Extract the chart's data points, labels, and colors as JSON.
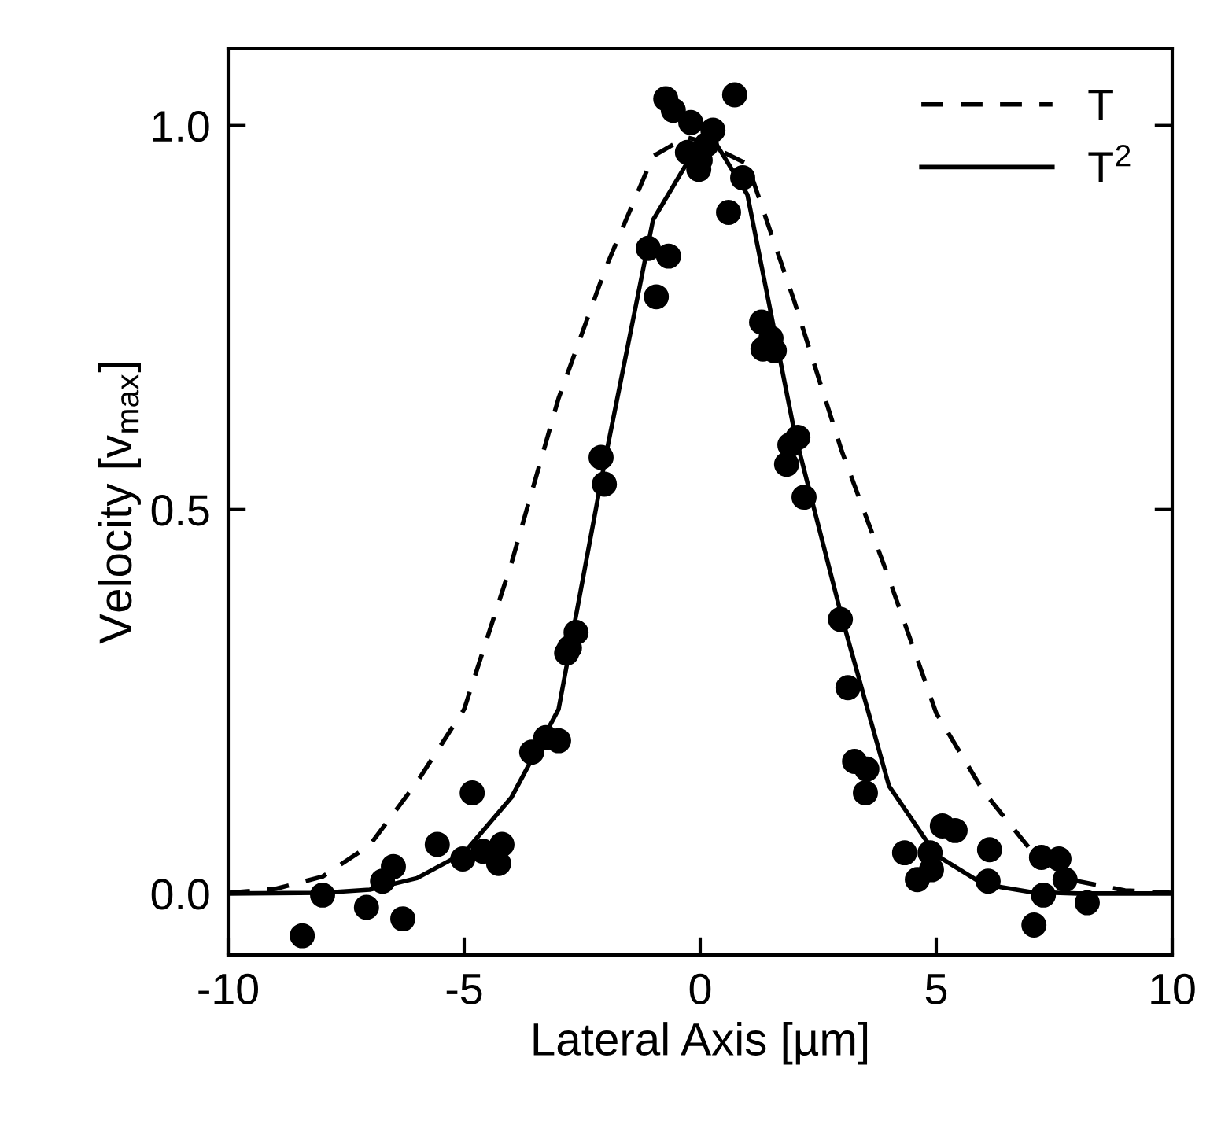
{
  "chart_data": {
    "type": "scatter",
    "xlabel": "Lateral Axis [µm]",
    "ylabel": "Velocity [v$_{max}$]",
    "xlim": [
      -10,
      10
    ],
    "xticks": [
      -10,
      -5,
      0,
      5,
      10
    ],
    "ylim": [
      -0.08,
      1.1
    ],
    "yticks": [
      {
        "value": 0,
        "label": "0.0"
      },
      {
        "value": 0.5,
        "label": "0.5"
      },
      {
        "value": 1,
        "label": "1.0"
      }
    ],
    "grid": false,
    "legend": "top right",
    "series": [
      {
        "type": "line",
        "name": "T",
        "color": "#000000",
        "line_style": "dashed",
        "marker": "none",
        "x": [
          -10,
          -9,
          -8,
          -7,
          -6,
          -5,
          -4,
          -3,
          -2,
          -1,
          -0.3,
          0,
          1,
          2,
          3,
          4,
          5,
          6,
          7,
          8,
          9,
          10
        ],
        "values": [
          0.001,
          0.006,
          0.022,
          0.063,
          0.145,
          0.24,
          0.43,
          0.645,
          0.815,
          0.96,
          0.985,
          0.98,
          0.95,
          0.77,
          0.576,
          0.41,
          0.235,
          0.133,
          0.057,
          0.016,
          0.004,
          0.001
        ]
      },
      {
        "type": "line",
        "name": "T$^{2}$",
        "color": "#000000",
        "line_style": "solid",
        "marker": "none",
        "x": [
          -10,
          -8,
          -7,
          -6,
          -5,
          -4,
          -3,
          -2,
          -1,
          0,
          0.2,
          1,
          2,
          3,
          4,
          5,
          6,
          7,
          8,
          10
        ],
        "values": [
          0,
          0.001,
          0.005,
          0.02,
          0.053,
          0.125,
          0.24,
          0.57,
          0.877,
          0.98,
          0.99,
          0.91,
          0.6,
          0.36,
          0.14,
          0.05,
          0.012,
          0.002,
          0,
          0
        ]
      },
      {
        "color": "#000000",
        "marker": "circle",
        "x": [
          -8.43,
          -8.0,
          -7.07,
          -6.73,
          -6.5,
          -6.3,
          -5.57,
          -4.83,
          -5.03,
          -4.6,
          -4.2,
          -4.27,
          -3.57,
          -3.27,
          -3.0,
          -2.83,
          -2.77,
          -2.63,
          -2.1,
          -2.03,
          -1.1,
          -0.67,
          -0.93,
          -0.73,
          -0.57,
          -0.2,
          -0.27,
          -0.03,
          0.0,
          0.27,
          0.13,
          0.73,
          0.9,
          0.6,
          1.3,
          1.33,
          1.57,
          1.5,
          2.07,
          1.9,
          1.83,
          2.2,
          2.97,
          3.13,
          3.27,
          3.53,
          3.5,
          5.13,
          5.4,
          4.33,
          4.87,
          4.9,
          4.6,
          6.13,
          6.1,
          7.23,
          7.6,
          7.73,
          7.27,
          8.2,
          7.07
        ],
        "values": [
          -0.055,
          -0.002,
          -0.018,
          0.016,
          0.035,
          -0.033,
          0.064,
          0.131,
          0.045,
          0.055,
          0.064,
          0.039,
          0.184,
          0.203,
          0.199,
          0.313,
          0.32,
          0.34,
          0.568,
          0.533,
          0.84,
          0.83,
          0.777,
          1.035,
          1.02,
          1.004,
          0.965,
          0.943,
          0.955,
          0.994,
          0.975,
          1.04,
          0.932,
          0.887,
          0.744,
          0.709,
          0.707,
          0.723,
          0.594,
          0.584,
          0.559,
          0.516,
          0.357,
          0.268,
          0.172,
          0.162,
          0.131,
          0.088,
          0.082,
          0.053,
          0.053,
          0.031,
          0.018,
          0.057,
          0.016,
          0.047,
          0.045,
          0.018,
          -0.002,
          -0.012,
          -0.041
        ]
      }
    ]
  }
}
